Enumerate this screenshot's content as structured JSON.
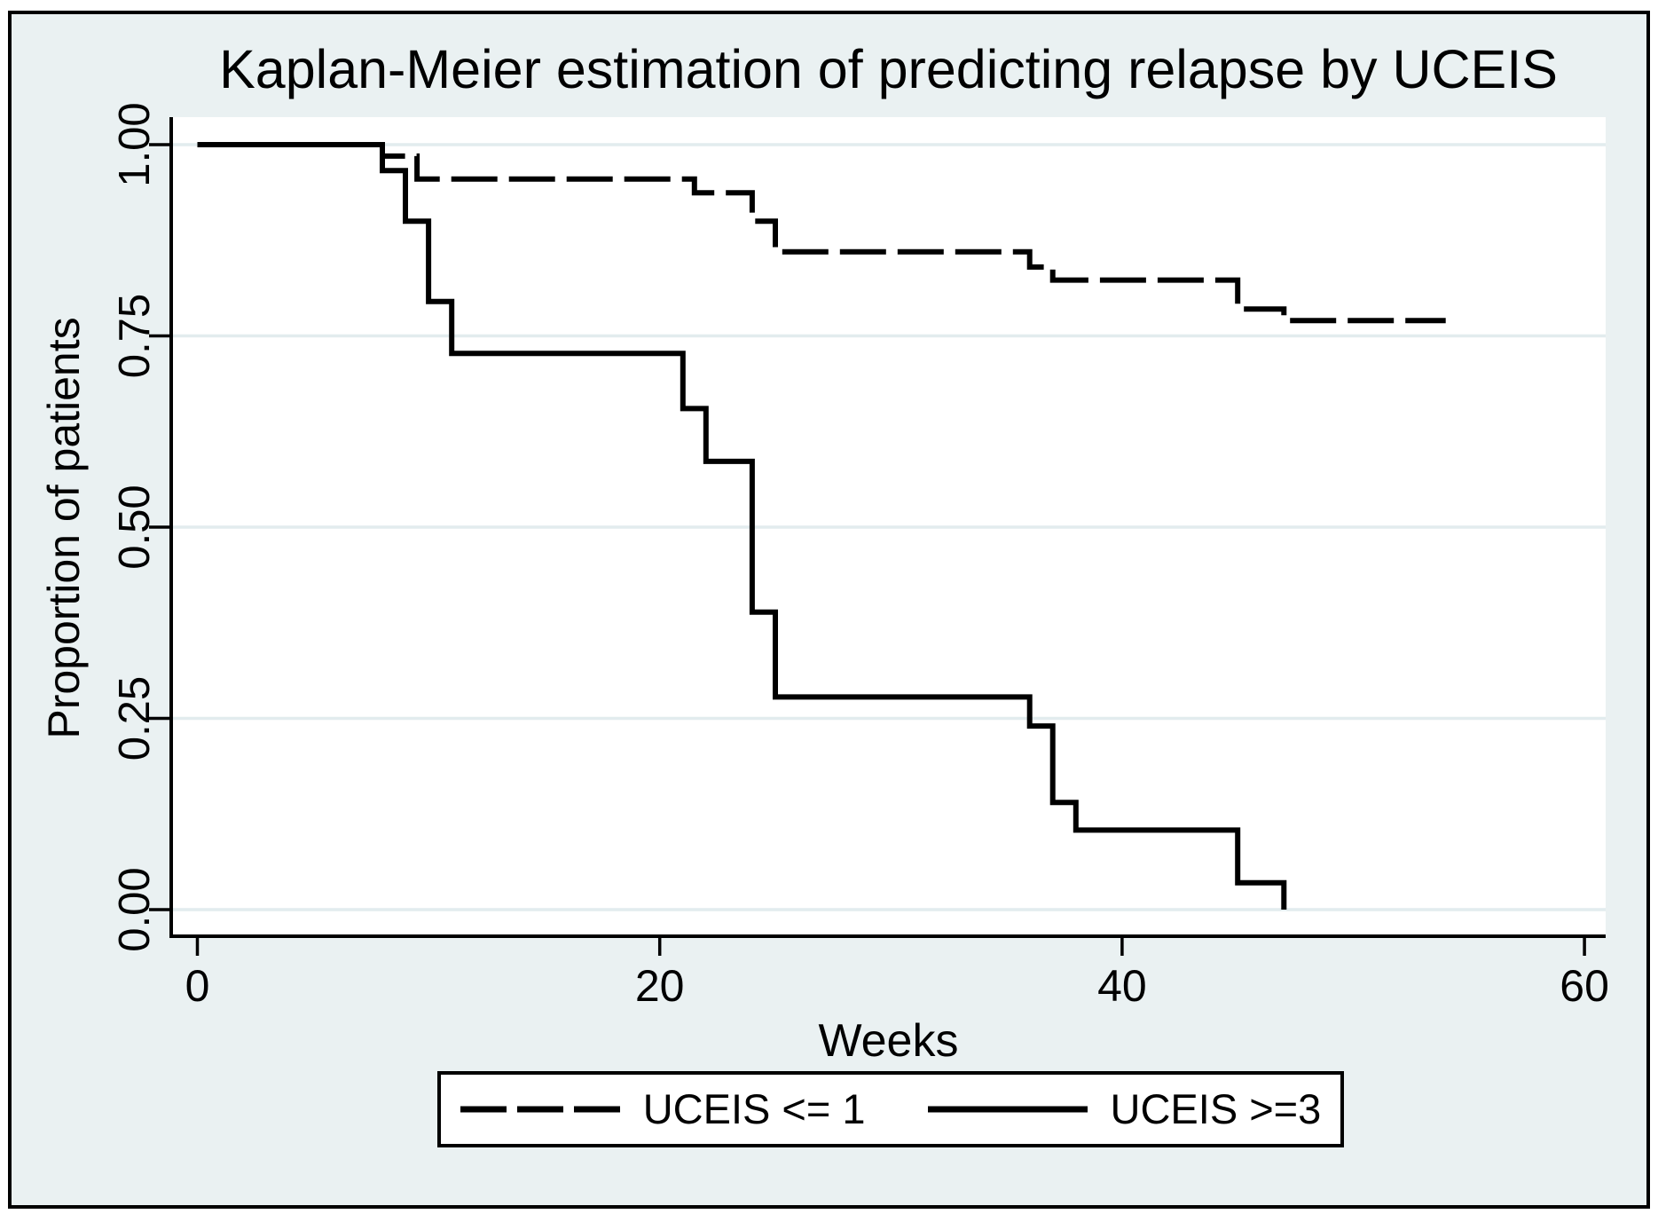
{
  "colors": {
    "background": "#eaf1f2",
    "plot_background": "#ffffff",
    "gridline": "#e2ecee",
    "curve": "#000000",
    "axis": "#000000",
    "text": "#000000",
    "frame_border": "#000000",
    "legend_border": "#000000",
    "legend_background": "#ffffff"
  },
  "chart_data": {
    "type": "line",
    "subtype": "kaplan-meier-step",
    "title": "Kaplan-Meier estimation of predicting relapse by UCEIS",
    "xlabel": "Weeks",
    "ylabel": "Proportion of patients",
    "xlim": [
      -1.2,
      60.9
    ],
    "ylim": [
      -0.04,
      1.04
    ],
    "grid": "horizontal-only",
    "legend_position": "bottom-center",
    "x_axis": {
      "ticks": [
        {
          "value": 0,
          "label": "0"
        },
        {
          "value": 20,
          "label": "20"
        },
        {
          "value": 40,
          "label": "40"
        },
        {
          "value": 60,
          "label": "60"
        }
      ]
    },
    "y_axis": {
      "ticks": [
        {
          "value": 1.0,
          "label": "1.00"
        },
        {
          "value": 0.75,
          "label": "0.75"
        },
        {
          "value": 0.5,
          "label": "0.50"
        },
        {
          "value": 0.25,
          "label": "0.25"
        },
        {
          "value": 0.0,
          "label": "0.00"
        }
      ]
    },
    "series": [
      {
        "name": "UCEIS <= 1",
        "style": "dashed",
        "points": [
          [
            0,
            1.0
          ],
          [
            8,
            0.985
          ],
          [
            9.5,
            0.955
          ],
          [
            21.5,
            0.937
          ],
          [
            24,
            0.9
          ],
          [
            25,
            0.86
          ],
          [
            36,
            0.84
          ],
          [
            37,
            0.823
          ],
          [
            45,
            0.785
          ],
          [
            47,
            0.77
          ],
          [
            54,
            0.77
          ]
        ]
      },
      {
        "name": "UCEIS >=3",
        "style": "solid",
        "points": [
          [
            0,
            1.0
          ],
          [
            8,
            0.966
          ],
          [
            9,
            0.9
          ],
          [
            10,
            0.795
          ],
          [
            11,
            0.727
          ],
          [
            21,
            0.655
          ],
          [
            22,
            0.586
          ],
          [
            24,
            0.389
          ],
          [
            25,
            0.278
          ],
          [
            36,
            0.24
          ],
          [
            37,
            0.14
          ],
          [
            38,
            0.104
          ],
          [
            45,
            0.035
          ],
          [
            47,
            0.0
          ]
        ]
      }
    ]
  }
}
